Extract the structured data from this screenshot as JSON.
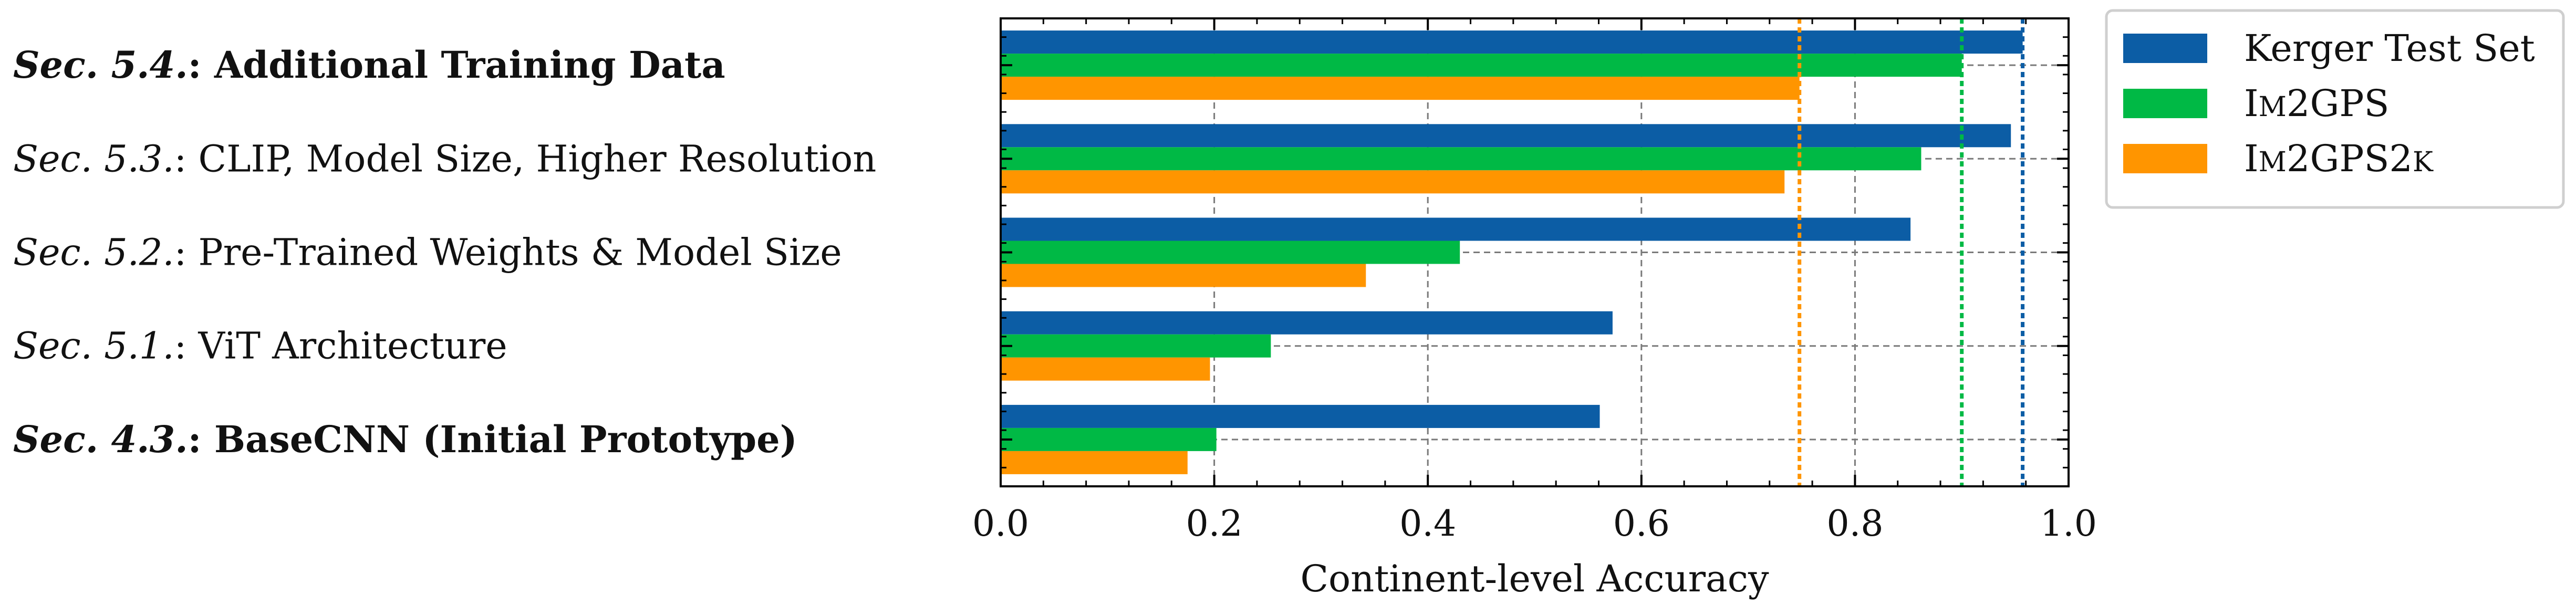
{
  "chart_data": {
    "type": "bar",
    "orientation": "horizontal",
    "categories": [
      {
        "prefix": "Sec.  4.3.",
        "suffix": ": BaseCNN (Initial Prototype)",
        "bold": true
      },
      {
        "prefix": "Sec.  5.1.",
        "suffix": ": ViT Architecture",
        "bold": false
      },
      {
        "prefix": "Sec.  5.2.",
        "suffix": ": Pre-Trained Weights & Model Size",
        "bold": false
      },
      {
        "prefix": "Sec.  5.3.",
        "suffix": ": CLIP, Model Size, Higher Resolution",
        "bold": false
      },
      {
        "prefix": "Sec.  5.4.",
        "suffix": ": Additional Training Data",
        "bold": true
      }
    ],
    "series": [
      {
        "name": "Kerger Test Set",
        "name_parts": [
          {
            "t": "Kerger Test Set",
            "sc": false
          }
        ],
        "color": "#0c5da5",
        "values": [
          0.561,
          0.573,
          0.852,
          0.946,
          0.957
        ]
      },
      {
        "name": "IM2GPS",
        "name_parts": [
          {
            "t": "I",
            "sc": false
          },
          {
            "t": "M",
            "sc": true
          },
          {
            "t": "2GPS",
            "sc": false
          }
        ],
        "color": "#00b945",
        "values": [
          0.202,
          0.253,
          0.43,
          0.862,
          0.9
        ]
      },
      {
        "name": "IM2GPS2K",
        "name_parts": [
          {
            "t": "I",
            "sc": false
          },
          {
            "t": "M",
            "sc": true
          },
          {
            "t": "2GPS2",
            "sc": false
          },
          {
            "t": "K",
            "sc": true
          }
        ],
        "color": "#ff9500",
        "values": [
          0.175,
          0.196,
          0.342,
          0.734,
          0.748
        ]
      }
    ],
    "reference_lines": [
      {
        "series": "Kerger Test Set",
        "x": 0.957
      },
      {
        "series": "IM2GPS",
        "x": 0.9
      },
      {
        "series": "IM2GPS2K",
        "x": 0.748
      }
    ],
    "xlabel": "Continent-level Accuracy",
    "ylabel": "",
    "title": "",
    "xlim": [
      0.0,
      1.0
    ],
    "xticks": [
      "0.0",
      "0.2",
      "0.4",
      "0.6",
      "0.8",
      "1.0"
    ],
    "grid": true,
    "legend": "outside-upper-right"
  }
}
